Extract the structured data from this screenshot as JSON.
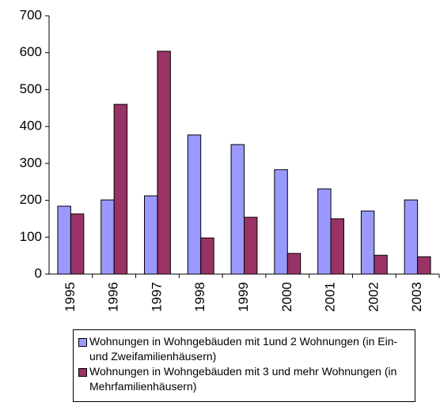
{
  "chart_data": {
    "type": "bar",
    "categories": [
      "1995",
      "1996",
      "1997",
      "1998",
      "1999",
      "2000",
      "2001",
      "2002",
      "2003"
    ],
    "series": [
      {
        "name": "Wohnungen in Wohngebäuden mit 1und 2 Wohnungen (in Ein- und Zweifamilienhäusern)",
        "color": "#9999ff",
        "values": [
          184,
          201,
          212,
          377,
          351,
          283,
          231,
          171,
          201
        ]
      },
      {
        "name": "Wohnungen in Wohngebäuden mit 3 und mehr Wohnungen (in Mehrfamilienhäusern)",
        "color": "#993366",
        "values": [
          163,
          460,
          604,
          98,
          154,
          56,
          150,
          51,
          47
        ]
      }
    ],
    "ylim": [
      0,
      700
    ],
    "yticks": [
      0,
      100,
      200,
      300,
      400,
      500,
      600,
      700
    ],
    "grid": false
  }
}
